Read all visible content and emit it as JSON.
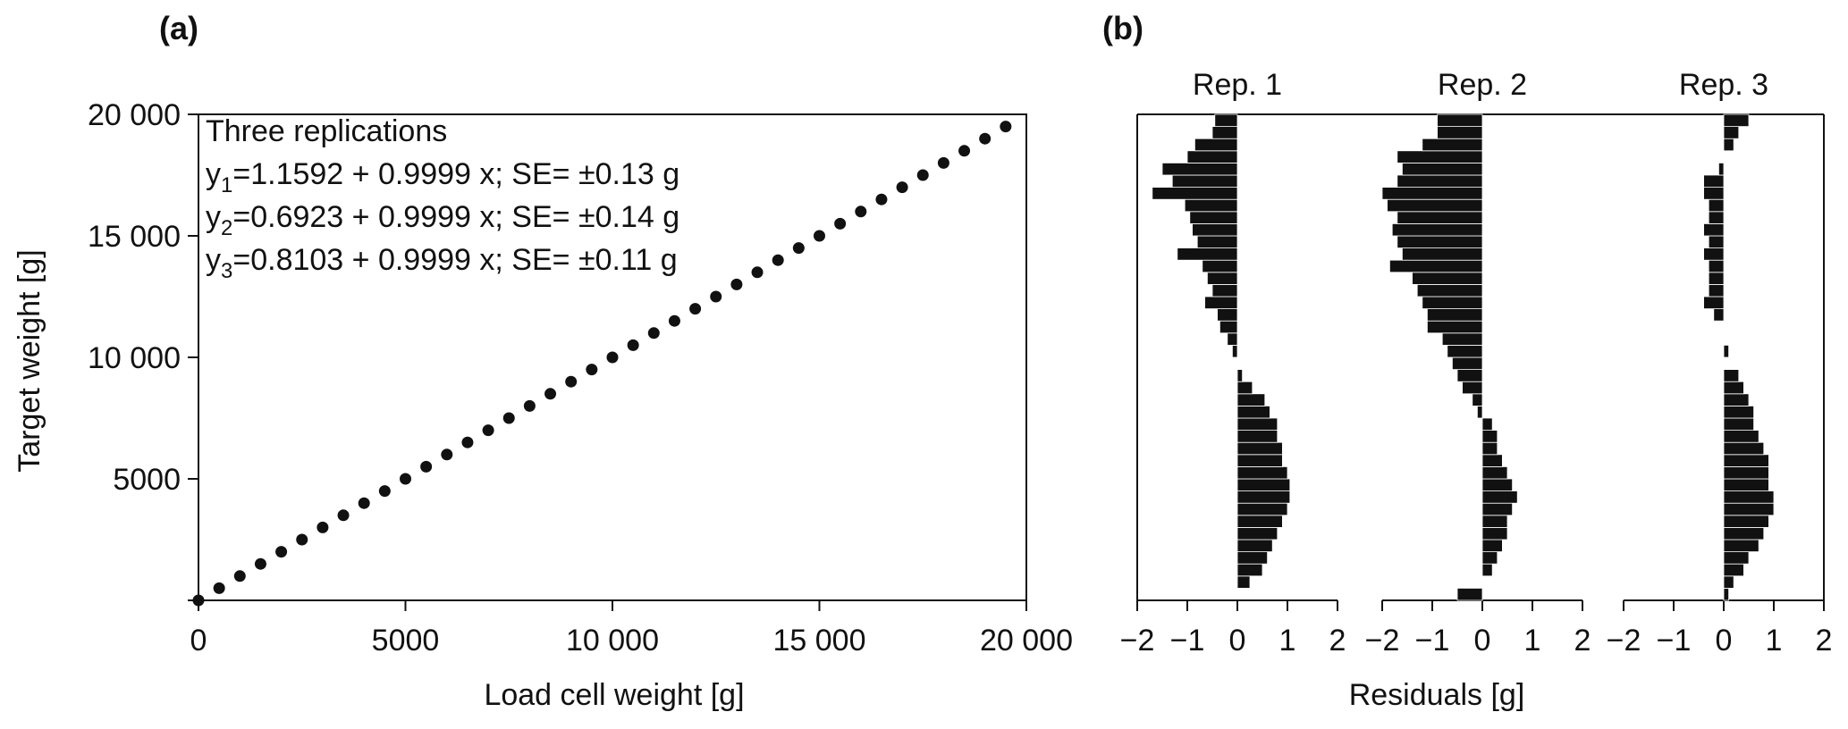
{
  "figure": {
    "panel_a_label": "(a)",
    "panel_b_label": "(b)"
  },
  "chart_data": [
    {
      "type": "scatter",
      "panel": "(a)",
      "xlabel": "Load cell weight [g]",
      "ylabel": "Target weight [g]",
      "xlim": [
        0,
        20000
      ],
      "ylim": [
        0,
        20000
      ],
      "x_ticks": [
        0,
        5000,
        10000,
        15000,
        20000
      ],
      "x_tick_labels": [
        "0",
        "5000",
        "10 000",
        "15 000",
        "20 000"
      ],
      "y_ticks": [
        5000,
        10000,
        15000,
        20000
      ],
      "y_tick_labels": [
        "5000",
        "10 000",
        "15 000",
        "20 000"
      ],
      "grid": false,
      "annotations": {
        "heading": "Three replications",
        "lines": [
          {
            "base": "y",
            "sub": "1",
            "text": "=1.1592 + 0.9999 x; SE= ±0.13 g"
          },
          {
            "base": "y",
            "sub": "2",
            "text": "=0.6923 + 0.9999 x; SE= ±0.14 g"
          },
          {
            "base": "y",
            "sub": "3",
            "text": "=0.8103 + 0.9999 x; SE= ±0.11 g"
          }
        ]
      },
      "series": [
        {
          "x": [
            0,
            500,
            1000,
            1500,
            2000,
            2500,
            3000,
            3500,
            4000,
            4500,
            5000,
            5500,
            6000,
            6500,
            7000,
            7500,
            8000,
            8500,
            9000,
            9500,
            10000,
            10500,
            11000,
            11500,
            12000,
            12500,
            13000,
            13500,
            14000,
            14500,
            15000,
            15500,
            16000,
            16500,
            17000,
            17500,
            18000,
            18500,
            19000,
            19500
          ],
          "y": [
            0,
            500,
            1000,
            1500,
            2000,
            2500,
            3000,
            3500,
            4000,
            4500,
            5000,
            5500,
            6000,
            6500,
            7000,
            7500,
            8000,
            8500,
            9000,
            9500,
            10000,
            10500,
            11000,
            11500,
            12000,
            12500,
            13000,
            13500,
            14000,
            14500,
            15000,
            15500,
            16000,
            16500,
            17000,
            17500,
            18000,
            18500,
            19000,
            19500
          ]
        }
      ]
    },
    {
      "type": "bar",
      "orientation": "horizontal",
      "panel": "(b)",
      "xlabel": "Residuals [g]",
      "xlim": [
        -2,
        2
      ],
      "x_ticks": [
        -2,
        -1,
        0,
        1,
        2
      ],
      "x_tick_labels": [
        "−2",
        "−1",
        "0",
        "1",
        "2"
      ],
      "ylim": [
        0,
        20000
      ],
      "categories": [
        0,
        500,
        1000,
        1500,
        2000,
        2500,
        3000,
        3500,
        4000,
        4500,
        5000,
        5500,
        6000,
        6500,
        7000,
        7500,
        8000,
        8500,
        9000,
        9500,
        10000,
        10500,
        11000,
        11500,
        12000,
        12500,
        13000,
        13500,
        14000,
        14500,
        15000,
        15500,
        16000,
        16500,
        17000,
        17500,
        18000,
        18500,
        19000,
        19500
      ],
      "series": [
        {
          "name": "Rep. 1",
          "values": [
            0,
            0.25,
            0.5,
            0.6,
            0.7,
            0.8,
            0.9,
            1.0,
            1.05,
            1.05,
            1.0,
            0.9,
            0.9,
            0.8,
            0.8,
            0.65,
            0.55,
            0.3,
            0.1,
            0.0,
            -0.1,
            -0.2,
            -0.35,
            -0.4,
            -0.65,
            -0.5,
            -0.6,
            -0.7,
            -1.2,
            -0.8,
            -0.9,
            -0.95,
            -1.05,
            -1.7,
            -1.3,
            -1.5,
            -1.0,
            -0.85,
            -0.5,
            -0.45
          ]
        },
        {
          "name": "Rep. 2",
          "values": [
            -0.5,
            0.0,
            0.2,
            0.3,
            0.4,
            0.5,
            0.5,
            0.6,
            0.7,
            0.6,
            0.5,
            0.4,
            0.3,
            0.3,
            0.2,
            -0.1,
            -0.2,
            -0.4,
            -0.5,
            -0.6,
            -0.7,
            -0.8,
            -1.1,
            -1.1,
            -1.2,
            -1.3,
            -1.4,
            -1.85,
            -1.6,
            -1.7,
            -1.8,
            -1.7,
            -1.9,
            -2.0,
            -1.7,
            -1.6,
            -1.7,
            -1.2,
            -0.9,
            -0.9
          ]
        },
        {
          "name": "Rep. 3",
          "values": [
            0.1,
            0.2,
            0.4,
            0.5,
            0.7,
            0.8,
            0.9,
            1.0,
            1.0,
            0.9,
            0.9,
            0.9,
            0.8,
            0.7,
            0.6,
            0.6,
            0.5,
            0.4,
            0.3,
            0.0,
            0.1,
            0.0,
            0.0,
            -0.2,
            -0.4,
            -0.3,
            -0.3,
            -0.3,
            -0.4,
            -0.3,
            -0.4,
            -0.3,
            -0.3,
            -0.4,
            -0.4,
            -0.1,
            0.0,
            0.2,
            0.3,
            0.5
          ]
        }
      ]
    }
  ]
}
